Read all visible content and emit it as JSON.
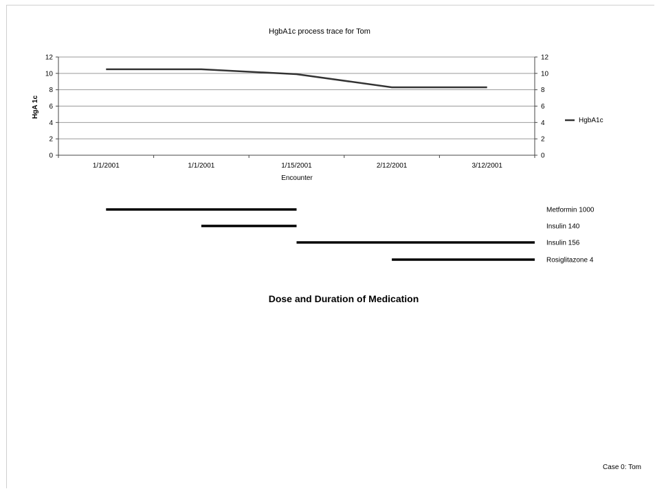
{
  "chart_data": [
    {
      "type": "line",
      "title": "HgbA1c process trace for Tom",
      "xlabel": "Encounter",
      "ylabel": "HgA 1c",
      "categories": [
        "1/1/2001",
        "1/1/2001",
        "1/15/2001",
        "2/12/2001",
        "3/12/2001"
      ],
      "series": [
        {
          "name": "HgbA1c",
          "values": [
            10.5,
            10.5,
            9.9,
            8.3,
            8.3
          ]
        }
      ],
      "ylim": [
        0,
        12
      ],
      "yticks": [
        "0",
        "2",
        "4",
        "6",
        "8",
        "10",
        "12"
      ],
      "secondary_y_axis": true,
      "grid": true,
      "legend_position": "right"
    },
    {
      "type": "bar",
      "title": "Dose and Duration of Medication",
      "orientation": "horizontal",
      "time_axis_categories": [
        "1/1/2001",
        "1/1/2001",
        "1/15/2001",
        "2/12/2001",
        "3/12/2001"
      ],
      "series": [
        {
          "name": "Metformin 1000",
          "start": 0,
          "end": 2
        },
        {
          "name": "Insulin 140",
          "start": 1,
          "end": 2
        },
        {
          "name": "Insulin 156",
          "start": 2,
          "end": 4.5
        },
        {
          "name": "Rosiglitazone 4",
          "start": 3,
          "end": 4.5
        }
      ]
    }
  ],
  "colors": {
    "line": "#333333",
    "grid": "#999999",
    "axis": "#444444",
    "bar": "#000000"
  },
  "footer": {
    "case_label": "Case  0: Tom"
  }
}
